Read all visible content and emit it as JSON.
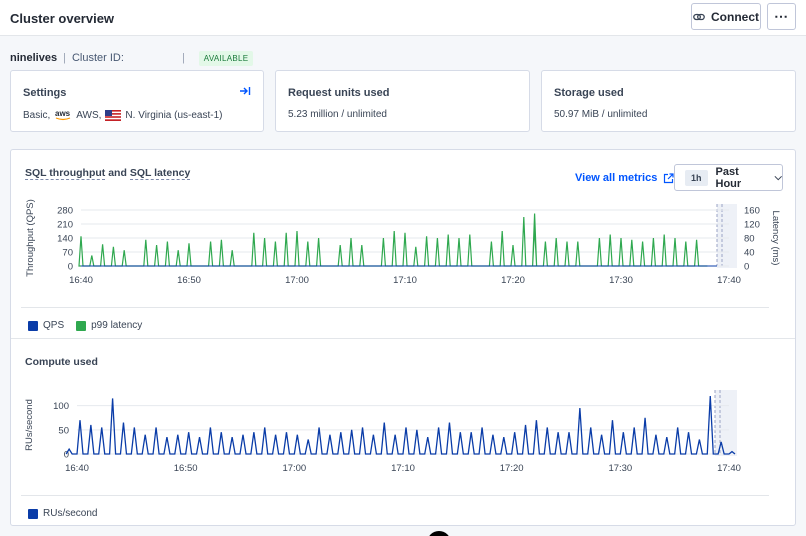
{
  "header": {
    "title": "Cluster overview",
    "connect_label": "Connect",
    "more_label": "⋯"
  },
  "cluster": {
    "name": "ninelives",
    "id_label": "Cluster ID:",
    "status": "AVAILABLE"
  },
  "cards": {
    "settings": {
      "title": "Settings",
      "plan": "Basic,",
      "provider_logo": "aws",
      "provider": "AWS,",
      "region": "N. Virginia (us-east-1)"
    },
    "request_units": {
      "title": "Request units used",
      "value": "5.23 million / unlimited"
    },
    "storage": {
      "title": "Storage used",
      "value": "50.97 MiB / unlimited"
    }
  },
  "metrics": {
    "view_all_label": "View all metrics",
    "range_badge": "1h",
    "range_label": "Past Hour",
    "sql_chart_title_part1": "SQL throughput",
    "sql_chart_title_and": " and ",
    "sql_chart_title_part2": "SQL latency",
    "compute_title": "Compute used"
  },
  "colors": {
    "qps": "#0a3ca8",
    "p99": "#2fa84f",
    "rus": "#0a3ca8",
    "accent": "#0055ff",
    "status_bg": "#e3f8e8"
  },
  "chart_data": [
    {
      "type": "line",
      "title": "SQL throughput and SQL latency",
      "xlabel": "",
      "ylabel": "Throughput (QPS)",
      "y2label": "Latency (ms)",
      "x_ticks": [
        "16:40",
        "16:50",
        "17:00",
        "17:10",
        "17:20",
        "17:30",
        "17:40"
      ],
      "y_ticks": [
        0,
        70,
        140,
        210,
        280
      ],
      "y2_ticks": [
        0,
        40,
        80,
        120,
        160
      ],
      "ylim": [
        0,
        280
      ],
      "y2lim": [
        0,
        160
      ],
      "legend": "bottom-left",
      "series": [
        {
          "name": "QPS",
          "values": [],
          "times": []
        },
        {
          "name": "p99 latency",
          "times": [
            "16:40",
            "16:41",
            "16:42",
            "16:43",
            "16:44",
            "16:46",
            "16:47",
            "16:48",
            "16:49",
            "16:50",
            "16:52",
            "16:53",
            "16:54",
            "16:56",
            "16:57",
            "16:58",
            "16:59",
            "17:00",
            "17:01",
            "17:02",
            "17:04",
            "17:05",
            "17:06",
            "17:08",
            "17:09",
            "17:10",
            "17:11",
            "17:12",
            "17:13",
            "17:14",
            "17:15",
            "17:16",
            "17:18",
            "17:19",
            "17:20",
            "17:21",
            "17:22",
            "17:22",
            "17:23",
            "17:24",
            "17:25",
            "17:26",
            "17:28",
            "17:29",
            "17:30",
            "17:31",
            "17:32",
            "17:33",
            "17:34",
            "17:35",
            "17:36",
            "17:37"
          ],
          "values": [
            85,
            30,
            62,
            55,
            45,
            75,
            60,
            70,
            45,
            65,
            70,
            75,
            45,
            95,
            80,
            70,
            95,
            100,
            70,
            80,
            60,
            80,
            60,
            80,
            100,
            95,
            55,
            85,
            80,
            90,
            80,
            90,
            70,
            100,
            60,
            140,
            150,
            110,
            70,
            80,
            70,
            70,
            80,
            90,
            80,
            75,
            70,
            80,
            90,
            80,
            70,
            75
          ]
        }
      ]
    },
    {
      "type": "line",
      "title": "Compute used",
      "xlabel": "",
      "ylabel": "RUs/second",
      "x_ticks": [
        "16:40",
        "16:50",
        "17:00",
        "17:10",
        "17:20",
        "17:30",
        "17:40"
      ],
      "y_ticks": [
        0,
        50,
        100
      ],
      "ylim": [
        0,
        120
      ],
      "legend": "bottom-left",
      "series": [
        {
          "name": "RUs/second",
          "times": [
            "16:39",
            "16:40",
            "16:41",
            "16:42",
            "16:43",
            "16:44",
            "16:45",
            "16:46",
            "16:47",
            "16:48",
            "16:49",
            "16:50",
            "16:51",
            "16:52",
            "16:53",
            "16:54",
            "16:55",
            "16:56",
            "16:57",
            "16:58",
            "16:59",
            "17:00",
            "17:01",
            "17:02",
            "17:03",
            "17:04",
            "17:05",
            "17:06",
            "17:07",
            "17:08",
            "17:09",
            "17:10",
            "17:11",
            "17:12",
            "17:13",
            "17:14",
            "17:15",
            "17:16",
            "17:17",
            "17:18",
            "17:19",
            "17:20",
            "17:21",
            "17:22",
            "17:23",
            "17:24",
            "17:25",
            "17:26",
            "17:27",
            "17:28",
            "17:29",
            "17:30",
            "17:31",
            "17:32",
            "17:33",
            "17:34",
            "17:35",
            "17:36",
            "17:37",
            "17:38",
            "17:39",
            "17:40"
          ],
          "values": [
            10,
            70,
            60,
            55,
            115,
            65,
            55,
            40,
            55,
            35,
            40,
            45,
            35,
            55,
            45,
            35,
            40,
            45,
            55,
            40,
            45,
            40,
            30,
            55,
            40,
            45,
            50,
            55,
            40,
            65,
            40,
            55,
            50,
            35,
            55,
            65,
            45,
            45,
            55,
            40,
            35,
            45,
            60,
            70,
            55,
            45,
            45,
            95,
            55,
            40,
            70,
            45,
            55,
            75,
            40,
            35,
            55,
            45,
            30,
            120,
            25,
            5
          ]
        }
      ]
    }
  ],
  "legend": {
    "qps": "QPS",
    "p99": "p99 latency",
    "rus": "RUs/second"
  }
}
